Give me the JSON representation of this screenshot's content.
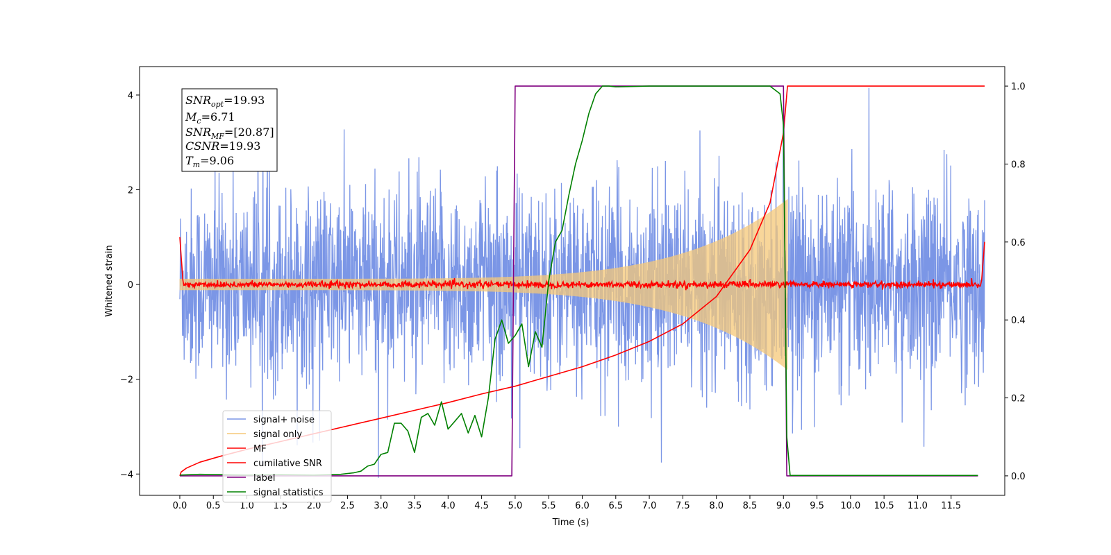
{
  "chart_data": {
    "type": "line",
    "title": "",
    "xlabel": "Time (s)",
    "ylabel": "Whitened strain",
    "xlim": [
      -0.6,
      12.3
    ],
    "ylim": [
      -4.45,
      4.6
    ],
    "y2lim": [
      -0.05,
      1.05
    ],
    "x_ticks": [
      "0.0",
      "0.5",
      "1.0",
      "1.5",
      "2.0",
      "2.5",
      "3.0",
      "3.5",
      "4.0",
      "4.5",
      "5.0",
      "5.5",
      "6.0",
      "6.5",
      "7.0",
      "7.5",
      "8.0",
      "8.5",
      "9.0",
      "9.5",
      "10.0",
      "10.5",
      "11.0",
      "11.5"
    ],
    "y_ticks": [
      "4",
      "2",
      "0",
      "−2",
      "−4"
    ],
    "y2_ticks": [
      "1.0",
      "0.8",
      "0.6",
      "0.4",
      "0.2",
      "0.0"
    ],
    "legend_position": "lower-left",
    "info_box": {
      "snr_opt": {
        "sym": "SNR",
        "sub": "opt",
        "value": "=19.93"
      },
      "mc": {
        "sym": "M",
        "sub": "c",
        "value": "=6.71"
      },
      "snr_mf": {
        "sym": "SNR",
        "sub": "MF",
        "value": "=[20.87]"
      },
      "csnr": {
        "sym": "CSNR",
        "sub": "",
        "value": "=19.93"
      },
      "tm": {
        "sym": "T",
        "sub": "m",
        "value": "=9.06"
      }
    },
    "series": [
      {
        "name": "signal+ noise",
        "color": "#7b96e6",
        "axis": "left",
        "kind": "noise",
        "x_range": [
          0,
          12
        ],
        "std": 1.0
      },
      {
        "name": "signal only",
        "color": "#f5c878",
        "axis": "left",
        "kind": "chirp",
        "x_range": [
          0,
          9.06
        ],
        "envelope_start": 0.12,
        "envelope_end": 1.8
      },
      {
        "name": "MF",
        "color": "#ff0000",
        "axis": "left",
        "kind": "small-noise",
        "x_range": [
          0,
          12
        ]
      },
      {
        "name": "cumilative SNR",
        "color": "#ff0000",
        "axis": "right",
        "x": [
          0,
          0.02,
          0.1,
          0.3,
          0.6,
          1.0,
          1.5,
          2.0,
          2.5,
          3.0,
          3.5,
          4.0,
          4.5,
          5.0,
          5.5,
          6.0,
          6.5,
          7.0,
          7.5,
          8.0,
          8.5,
          8.8,
          9.0,
          9.06,
          12.0
        ],
        "y": [
          0.0,
          0.01,
          0.02,
          0.035,
          0.05,
          0.068,
          0.088,
          0.108,
          0.128,
          0.148,
          0.168,
          0.188,
          0.21,
          0.23,
          0.255,
          0.28,
          0.31,
          0.345,
          0.39,
          0.46,
          0.58,
          0.7,
          0.88,
          1.0,
          1.0
        ]
      },
      {
        "name": "label",
        "color": "#800080",
        "axis": "right",
        "x": [
          0,
          4.95,
          5.0,
          9.0,
          9.05,
          11.9
        ],
        "y": [
          0,
          0,
          1,
          1,
          0,
          0
        ]
      },
      {
        "name": "signal statistics",
        "color": "#008000",
        "axis": "right",
        "x": [
          0,
          0.3,
          0.6,
          1.0,
          1.5,
          2.0,
          2.4,
          2.6,
          2.7,
          2.8,
          2.9,
          3.0,
          3.1,
          3.2,
          3.3,
          3.4,
          3.5,
          3.6,
          3.7,
          3.8,
          3.9,
          4.0,
          4.1,
          4.2,
          4.3,
          4.4,
          4.5,
          4.6,
          4.7,
          4.8,
          4.9,
          5.0,
          5.1,
          5.2,
          5.3,
          5.4,
          5.5,
          5.6,
          5.7,
          5.8,
          5.9,
          6.0,
          6.1,
          6.2,
          6.3,
          6.4,
          6.5,
          7.0,
          7.5,
          8.0,
          8.5,
          8.8,
          8.95,
          9.0,
          9.05,
          9.1,
          11.9
        ],
        "y": [
          0.002,
          0.004,
          0.003,
          0.002,
          0.003,
          0.002,
          0.004,
          0.008,
          0.012,
          0.025,
          0.03,
          0.055,
          0.06,
          0.135,
          0.135,
          0.115,
          0.06,
          0.15,
          0.16,
          0.13,
          0.19,
          0.12,
          0.14,
          0.16,
          0.11,
          0.155,
          0.1,
          0.2,
          0.35,
          0.4,
          0.34,
          0.36,
          0.39,
          0.28,
          0.37,
          0.33,
          0.5,
          0.6,
          0.63,
          0.72,
          0.8,
          0.86,
          0.93,
          0.98,
          1.0,
          1.0,
          0.998,
          1.0,
          1.0,
          1.0,
          1.0,
          1.0,
          0.98,
          0.9,
          0.1,
          0.001,
          0.001
        ]
      }
    ]
  }
}
